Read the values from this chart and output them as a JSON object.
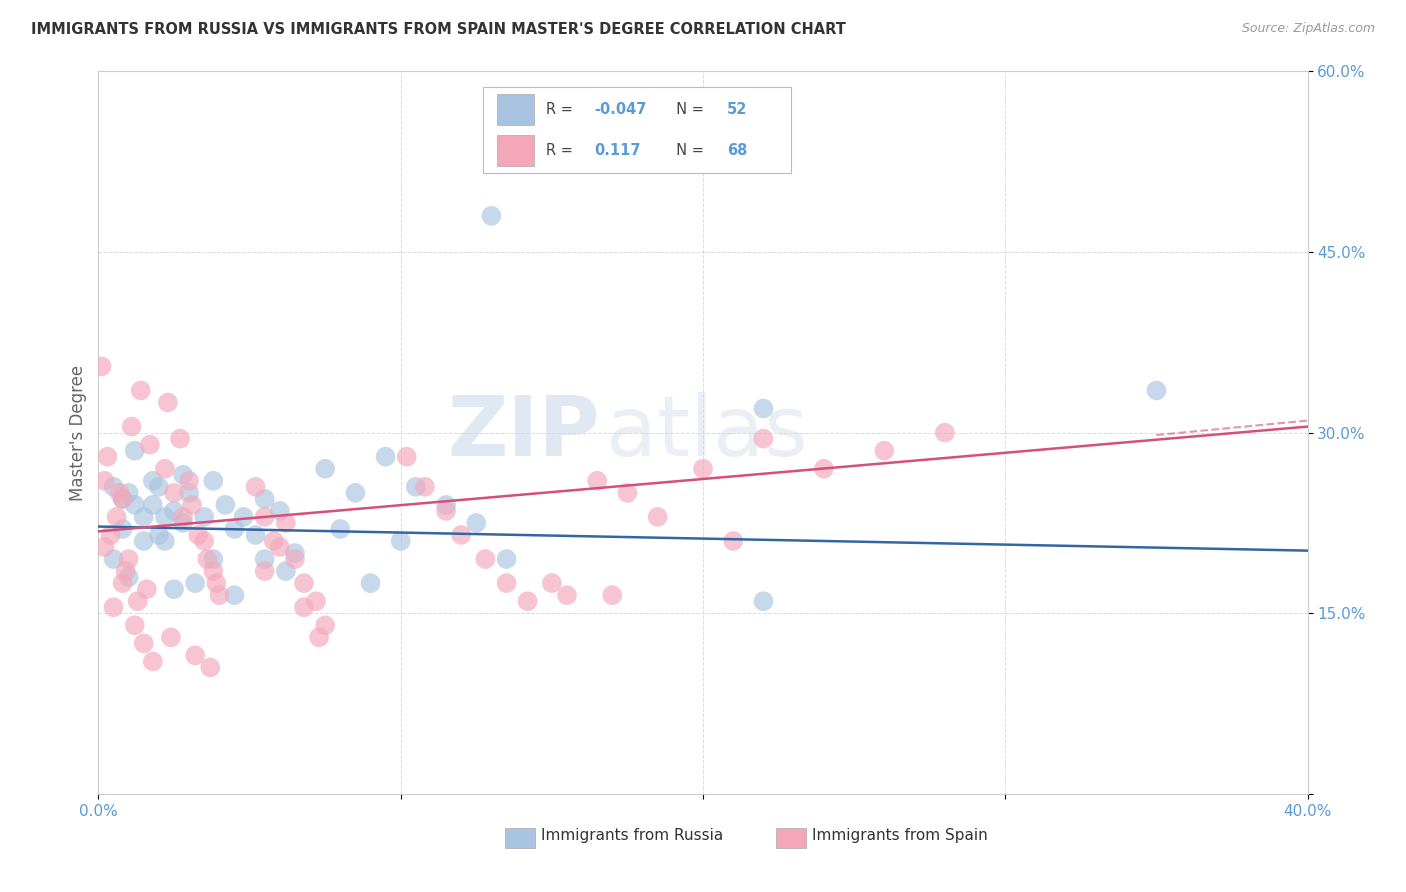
{
  "title": "IMMIGRANTS FROM RUSSIA VS IMMIGRANTS FROM SPAIN MASTER'S DEGREE CORRELATION CHART",
  "source": "Source: ZipAtlas.com",
  "xlabel_russia": "Immigrants from Russia",
  "xlabel_spain": "Immigrants from Spain",
  "ylabel": "Master's Degree",
  "xlim": [
    0.0,
    0.4
  ],
  "ylim": [
    0.0,
    0.6
  ],
  "r_russia": -0.047,
  "n_russia": 52,
  "r_spain": 0.117,
  "n_spain": 68,
  "russia_color": "#a8c4e0",
  "spain_color": "#f4a7b9",
  "russia_line_color": "#3465a4",
  "spain_line_color": "#d44f7a",
  "background_color": "#ffffff",
  "grid_color": "#cccccc",
  "watermark_zip": "ZIP",
  "watermark_atlas": "atlas",
  "tick_color": "#5b9bd5",
  "label_color": "#555555"
}
